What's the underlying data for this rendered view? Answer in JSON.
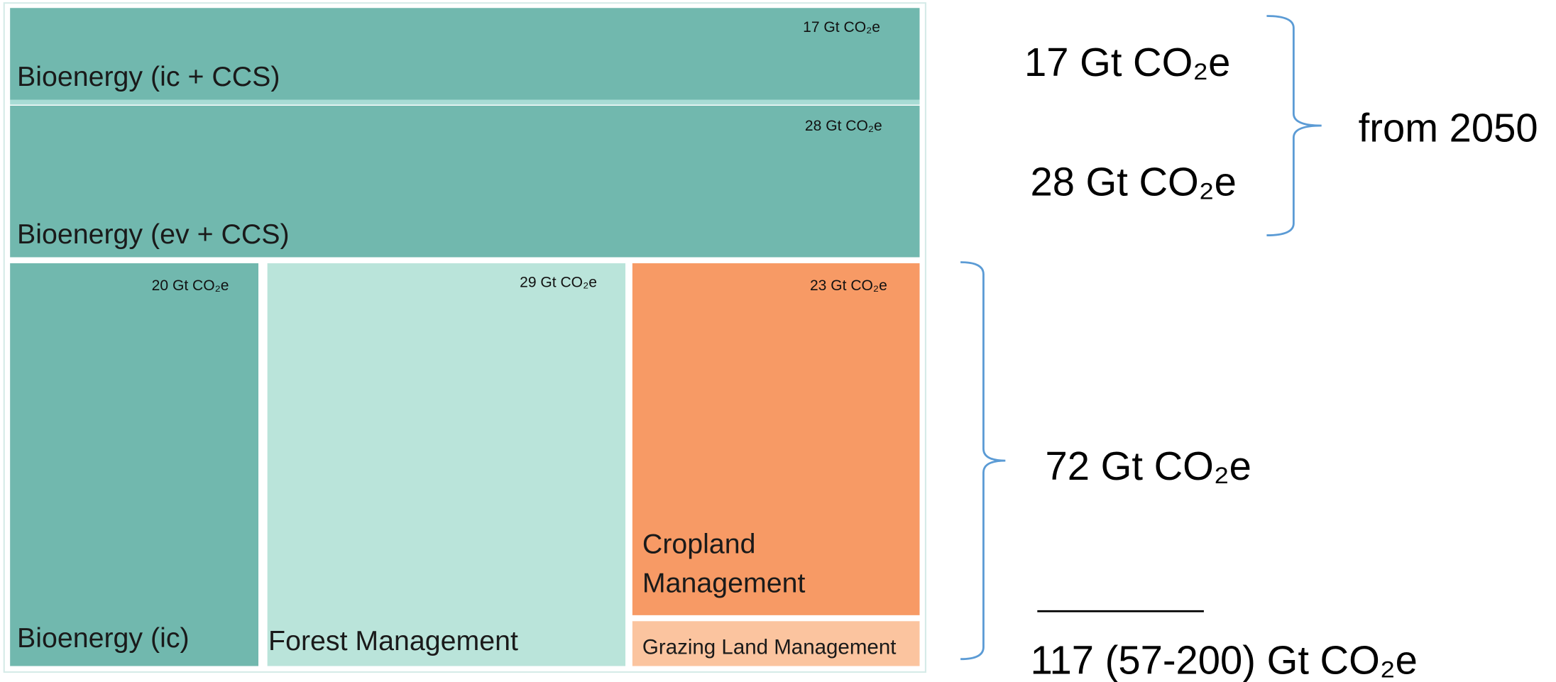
{
  "tiles": [
    {
      "label": "Bioenergy (ic + CCS)",
      "value_label": "17 Gt CO₂e"
    },
    {
      "label": "Bioenergy (ev + CCS)",
      "value_label": "28 Gt CO₂e"
    },
    {
      "label": "Bioenergy (ic)",
      "value_label": "20 Gt CO₂e"
    },
    {
      "label": "Forest Management",
      "value_label": "29 Gt CO₂e"
    },
    {
      "label_lines": [
        "Cropland",
        "Management"
      ],
      "value_label": "23 Gt CO₂e"
    },
    {
      "label": "Grazing Land Management"
    }
  ],
  "annotations": {
    "upper": [
      "17 Gt CO₂e",
      "28 Gt CO₂e"
    ],
    "upper_note": "from 2050",
    "lower": "72 Gt CO₂e",
    "total": "117 (57-200) Gt CO₂e"
  }
}
